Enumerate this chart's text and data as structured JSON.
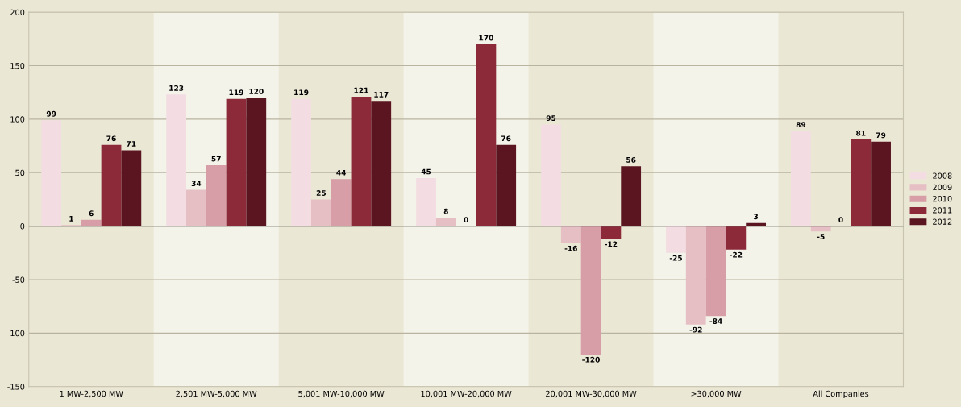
{
  "chart_data": {
    "type": "bar",
    "categories": [
      "1 MW-2,500 MW",
      "2,501 MW-5,000 MW",
      "5,001 MW-10,000 MW",
      "10,001 MW-20,000 MW",
      "20,001 MW-30,000 MW",
      ">30,000 MW",
      "All Companies"
    ],
    "series": [
      {
        "name": "2008",
        "color": "#f3dde2",
        "values": [
          99,
          123,
          119,
          45,
          95,
          -25,
          89
        ]
      },
      {
        "name": "2009",
        "color": "#e6bfc5",
        "values": [
          1,
          34,
          25,
          8,
          -16,
          -92,
          -5
        ]
      },
      {
        "name": "2010",
        "color": "#d79ea7",
        "values": [
          6,
          57,
          44,
          0,
          -120,
          -84,
          0
        ]
      },
      {
        "name": "2011",
        "color": "#8c2a3a",
        "values": [
          76,
          119,
          121,
          170,
          -12,
          -22,
          81
        ]
      },
      {
        "name": "2012",
        "color": "#5a1520",
        "values": [
          71,
          120,
          117,
          76,
          56,
          3,
          79
        ]
      }
    ],
    "ylim": [
      -150,
      200
    ],
    "yticks": [
      -150,
      -100,
      -50,
      0,
      50,
      100,
      150,
      200
    ],
    "grid": "y",
    "legend": "right",
    "data_labels": true
  }
}
